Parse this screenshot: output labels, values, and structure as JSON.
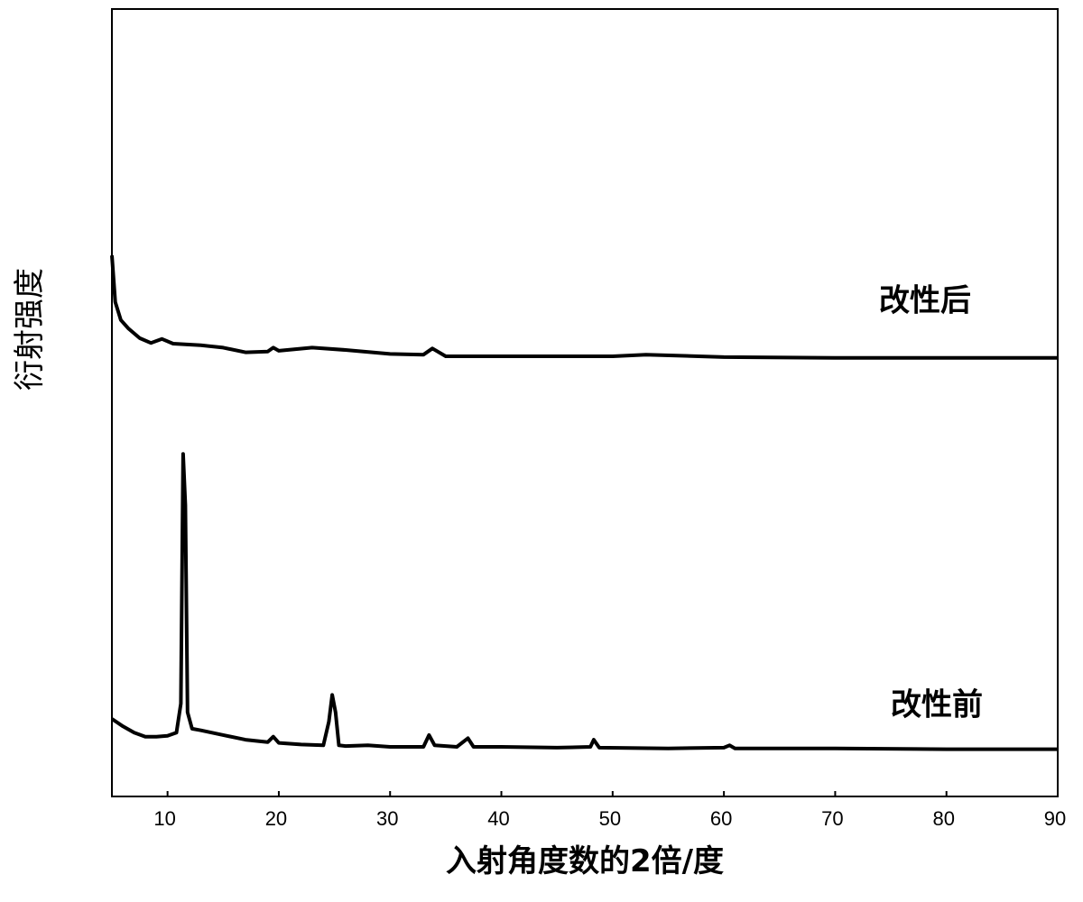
{
  "chart_data": {
    "type": "line",
    "x_label": "入射角度数的2倍/度",
    "y_label": "衍射强度",
    "xlim": [
      5,
      90
    ],
    "xticks": [
      10,
      20,
      30,
      40,
      50,
      60,
      70,
      80,
      90
    ],
    "ylim": [
      0,
      100
    ],
    "grid": false,
    "series": [
      {
        "name": "改性后",
        "color": "#000000",
        "x": [
          5,
          5.3,
          5.8,
          6.5,
          7.5,
          8.5,
          9.5,
          10.5,
          13,
          15,
          17,
          19,
          19.5,
          20,
          23,
          26,
          30,
          33,
          33.8,
          35,
          40,
          50,
          53,
          60,
          70,
          90
        ],
        "values": [
          68.7,
          62.8,
          60.5,
          59.4,
          58.2,
          57.6,
          58.1,
          57.5,
          57.3,
          57.0,
          56.4,
          56.5,
          57.0,
          56.6,
          57.0,
          56.7,
          56.2,
          56.1,
          56.9,
          55.9,
          55.9,
          55.9,
          56.1,
          55.8,
          55.7,
          55.7
        ]
      },
      {
        "name": "改性前",
        "color": "#000000",
        "x": [
          5,
          6,
          7,
          8,
          9,
          10,
          10.8,
          11.2,
          11.4,
          11.6,
          11.8,
          12.2,
          13,
          15,
          17,
          19,
          19.5,
          20,
          22,
          24,
          24.5,
          24.8,
          25.1,
          25.4,
          26,
          28,
          30,
          33,
          33.5,
          34,
          36,
          37,
          37.5,
          40,
          45,
          48,
          48.3,
          48.8,
          55,
          60,
          60.5,
          61,
          70,
          80,
          90
        ],
        "values": [
          9.85,
          8.9,
          8.1,
          7.6,
          7.6,
          7.7,
          8.1,
          11.8,
          43.5,
          37.0,
          10.7,
          8.6,
          8.4,
          7.8,
          7.2,
          6.9,
          7.6,
          6.8,
          6.6,
          6.5,
          9.5,
          12.9,
          10.7,
          6.5,
          6.4,
          6.5,
          6.3,
          6.3,
          7.8,
          6.5,
          6.3,
          7.4,
          6.3,
          6.3,
          6.2,
          6.3,
          7.2,
          6.2,
          6.1,
          6.2,
          6.5,
          6.1,
          6.1,
          6.0,
          6.0
        ]
      }
    ]
  }
}
